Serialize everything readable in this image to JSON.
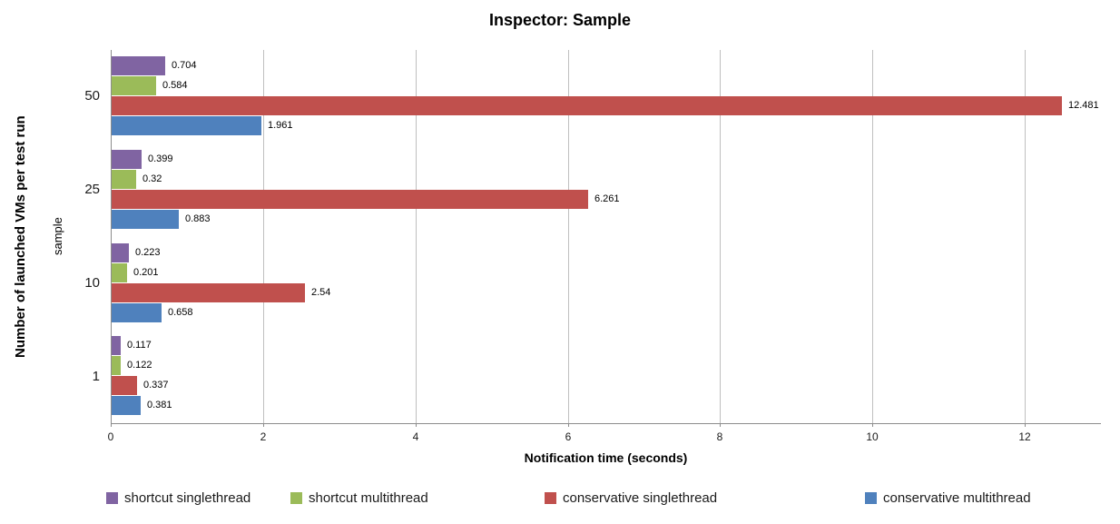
{
  "chart_data": {
    "type": "bar",
    "orientation": "horizontal",
    "title": "Inspector: Sample",
    "xlabel": "Notification time (seconds)",
    "ylabel": "Number of launched VMs per test run",
    "ylabel_secondary": "sample",
    "categories": [
      "50",
      "25",
      "10",
      "1"
    ],
    "series": [
      {
        "name": "shortcut singlethread",
        "color": "#8064A2",
        "values": [
          0.704,
          0.399,
          0.223,
          0.117
        ],
        "labels": [
          "0.704",
          "0.399",
          "0.223",
          "0.117"
        ]
      },
      {
        "name": "shortcut multithread",
        "color": "#9BBB59",
        "values": [
          0.584,
          0.32,
          0.201,
          0.122
        ],
        "labels": [
          "0.584",
          "0.32",
          "0.201",
          "0.122"
        ]
      },
      {
        "name": "conservative singlethread",
        "color": "#C0504D",
        "values": [
          12.481,
          6.261,
          2.54,
          0.337
        ],
        "labels": [
          "12.481",
          "6.261",
          "2.54",
          "0.337"
        ]
      },
      {
        "name": "conservative multithread",
        "color": "#4F81BD",
        "values": [
          1.961,
          0.883,
          0.658,
          0.381
        ],
        "labels": [
          "1.961",
          "0.883",
          "0.658",
          "0.381"
        ]
      }
    ],
    "xlim": [
      0,
      13
    ],
    "xticks": [
      "0",
      "2",
      "4",
      "6",
      "8",
      "10",
      "12"
    ],
    "grid": true,
    "grid_color": "#BFBFBF",
    "axis_color": "#8C8C8C",
    "text_color": "#000000",
    "legend_position": "bottom"
  }
}
